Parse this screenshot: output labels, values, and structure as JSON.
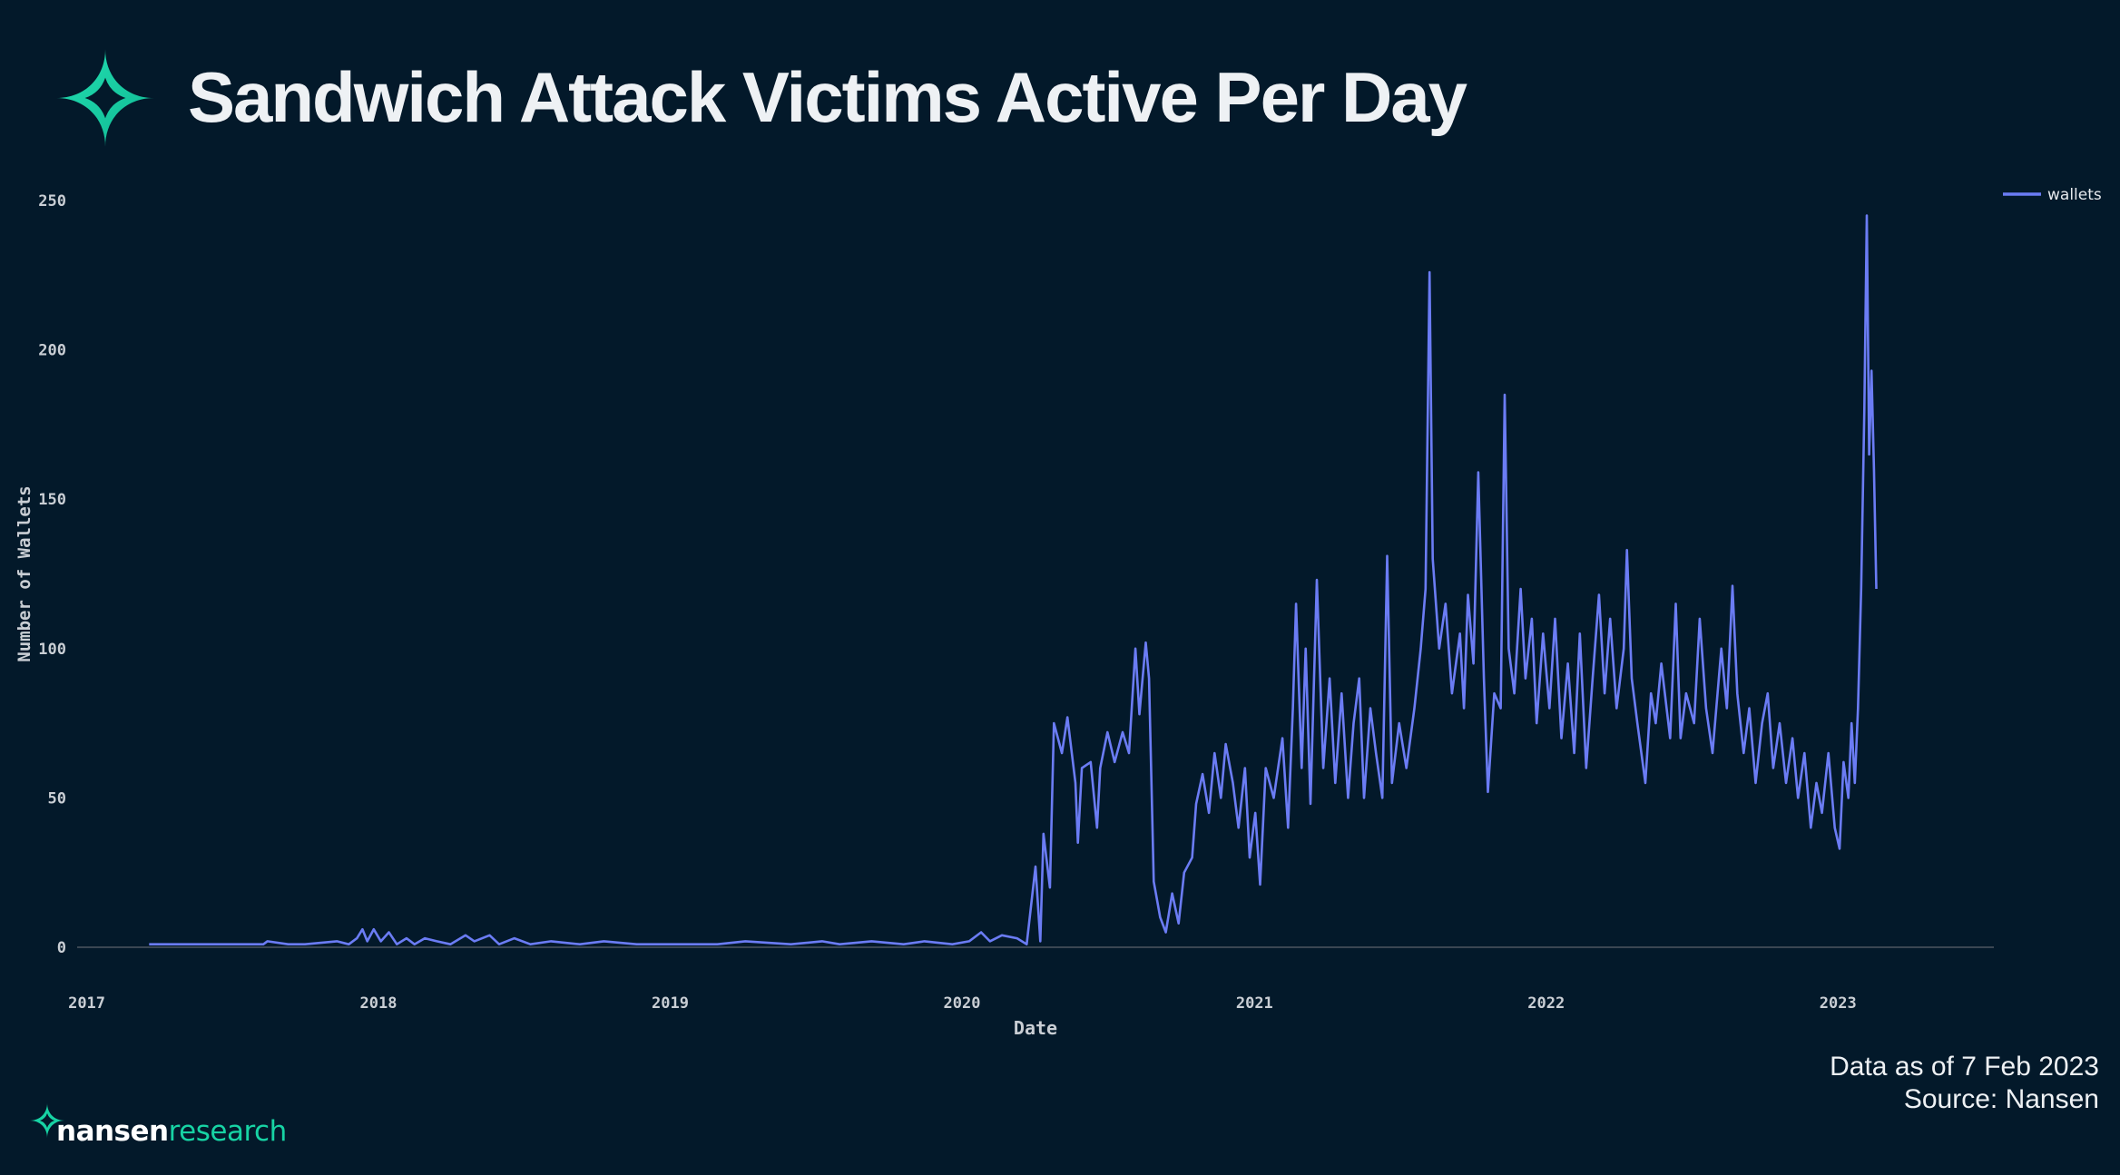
{
  "header": {
    "title": "Sandwich Attack Victims Active Per Day"
  },
  "footer": {
    "brand_primary": "nansen",
    "brand_secondary": "research",
    "data_note": "Data as of 7 Feb 2023",
    "source_note": "Source: Nansen"
  },
  "icons": {
    "logo": "nansen-star-icon",
    "brand": "nansen-star-icon"
  },
  "colors": {
    "background": "#03192a",
    "line": "#6b7cf4",
    "brand_teal": "#17d3a4",
    "axis_text": "#c9ced4"
  },
  "chart_data": {
    "type": "line",
    "xlabel": "Date",
    "ylabel": "Number of Wallets",
    "x_tick_labels": [
      "2017",
      "2018",
      "2019",
      "2020",
      "2021",
      "2022",
      "2023"
    ],
    "y_tick_labels": [
      "0",
      "50",
      "100",
      "150",
      "200",
      "250"
    ],
    "ylim": [
      0,
      250
    ],
    "xlim": [
      "2016-12-20",
      "2023-07-15"
    ],
    "legend_position": "top-right",
    "grid": false,
    "series": [
      {
        "name": "wallets",
        "color": "#6b7cf4",
        "points": [
          [
            "2017-03-20",
            1
          ],
          [
            "2017-06-01",
            1
          ],
          [
            "2017-08-10",
            1
          ],
          [
            "2017-08-15",
            2
          ],
          [
            "2017-09-10",
            1
          ],
          [
            "2017-10-01",
            1
          ],
          [
            "2017-11-10",
            2
          ],
          [
            "2017-11-25",
            1
          ],
          [
            "2017-12-05",
            3
          ],
          [
            "2017-12-12",
            6
          ],
          [
            "2017-12-18",
            2
          ],
          [
            "2017-12-26",
            6
          ],
          [
            "2018-01-04",
            2
          ],
          [
            "2018-01-14",
            5
          ],
          [
            "2018-01-24",
            1
          ],
          [
            "2018-02-05",
            3
          ],
          [
            "2018-02-15",
            1
          ],
          [
            "2018-02-28",
            3
          ],
          [
            "2018-03-15",
            2
          ],
          [
            "2018-04-01",
            1
          ],
          [
            "2018-04-20",
            4
          ],
          [
            "2018-05-01",
            2
          ],
          [
            "2018-05-20",
            4
          ],
          [
            "2018-06-01",
            1
          ],
          [
            "2018-06-20",
            3
          ],
          [
            "2018-07-10",
            1
          ],
          [
            "2018-08-05",
            2
          ],
          [
            "2018-09-10",
            1
          ],
          [
            "2018-10-10",
            2
          ],
          [
            "2018-11-20",
            1
          ],
          [
            "2019-01-01",
            1
          ],
          [
            "2019-03-01",
            1
          ],
          [
            "2019-04-05",
            2
          ],
          [
            "2019-06-01",
            1
          ],
          [
            "2019-07-10",
            2
          ],
          [
            "2019-08-01",
            1
          ],
          [
            "2019-09-10",
            2
          ],
          [
            "2019-10-20",
            1
          ],
          [
            "2019-11-15",
            2
          ],
          [
            "2019-12-20",
            1
          ],
          [
            "2020-01-10",
            2
          ],
          [
            "2020-01-25",
            5
          ],
          [
            "2020-02-05",
            2
          ],
          [
            "2020-02-20",
            4
          ],
          [
            "2020-03-10",
            3
          ],
          [
            "2020-03-22",
            1
          ],
          [
            "2020-04-02",
            27
          ],
          [
            "2020-04-08",
            2
          ],
          [
            "2020-04-12",
            38
          ],
          [
            "2020-04-20",
            20
          ],
          [
            "2020-04-25",
            75
          ],
          [
            "2020-05-05",
            65
          ],
          [
            "2020-05-12",
            77
          ],
          [
            "2020-05-22",
            55
          ],
          [
            "2020-05-25",
            35
          ],
          [
            "2020-05-30",
            60
          ],
          [
            "2020-06-10",
            62
          ],
          [
            "2020-06-18",
            40
          ],
          [
            "2020-06-22",
            60
          ],
          [
            "2020-07-01",
            72
          ],
          [
            "2020-07-10",
            62
          ],
          [
            "2020-07-20",
            72
          ],
          [
            "2020-07-28",
            65
          ],
          [
            "2020-08-05",
            100
          ],
          [
            "2020-08-10",
            78
          ],
          [
            "2020-08-18",
            102
          ],
          [
            "2020-08-22",
            90
          ],
          [
            "2020-08-28",
            22
          ],
          [
            "2020-09-05",
            10
          ],
          [
            "2020-09-12",
            5
          ],
          [
            "2020-09-20",
            18
          ],
          [
            "2020-09-28",
            8
          ],
          [
            "2020-10-05",
            25
          ],
          [
            "2020-10-15",
            30
          ],
          [
            "2020-10-20",
            48
          ],
          [
            "2020-10-28",
            58
          ],
          [
            "2020-11-05",
            45
          ],
          [
            "2020-11-12",
            65
          ],
          [
            "2020-11-20",
            50
          ],
          [
            "2020-11-26",
            68
          ],
          [
            "2020-12-05",
            55
          ],
          [
            "2020-12-12",
            40
          ],
          [
            "2020-12-20",
            60
          ],
          [
            "2020-12-26",
            30
          ],
          [
            "2021-01-02",
            45
          ],
          [
            "2021-01-08",
            21
          ],
          [
            "2021-01-15",
            60
          ],
          [
            "2021-01-25",
            50
          ],
          [
            "2021-02-05",
            70
          ],
          [
            "2021-02-12",
            40
          ],
          [
            "2021-02-18",
            80
          ],
          [
            "2021-02-22",
            115
          ],
          [
            "2021-03-01",
            60
          ],
          [
            "2021-03-06",
            100
          ],
          [
            "2021-03-12",
            48
          ],
          [
            "2021-03-20",
            123
          ],
          [
            "2021-03-28",
            60
          ],
          [
            "2021-04-05",
            90
          ],
          [
            "2021-04-12",
            55
          ],
          [
            "2021-04-20",
            85
          ],
          [
            "2021-04-28",
            50
          ],
          [
            "2021-05-05",
            75
          ],
          [
            "2021-05-12",
            90
          ],
          [
            "2021-05-18",
            50
          ],
          [
            "2021-05-26",
            80
          ],
          [
            "2021-06-02",
            65
          ],
          [
            "2021-06-10",
            50
          ],
          [
            "2021-06-16",
            131
          ],
          [
            "2021-06-22",
            55
          ],
          [
            "2021-07-01",
            75
          ],
          [
            "2021-07-10",
            60
          ],
          [
            "2021-07-20",
            80
          ],
          [
            "2021-07-28",
            100
          ],
          [
            "2021-08-03",
            120
          ],
          [
            "2021-08-08",
            226
          ],
          [
            "2021-08-12",
            130
          ],
          [
            "2021-08-20",
            100
          ],
          [
            "2021-08-28",
            115
          ],
          [
            "2021-09-05",
            85
          ],
          [
            "2021-09-15",
            105
          ],
          [
            "2021-09-20",
            80
          ],
          [
            "2021-09-25",
            118
          ],
          [
            "2021-10-02",
            95
          ],
          [
            "2021-10-08",
            159
          ],
          [
            "2021-10-15",
            90
          ],
          [
            "2021-10-20",
            52
          ],
          [
            "2021-10-28",
            85
          ],
          [
            "2021-11-05",
            80
          ],
          [
            "2021-11-10",
            185
          ],
          [
            "2021-11-15",
            100
          ],
          [
            "2021-11-22",
            85
          ],
          [
            "2021-11-30",
            120
          ],
          [
            "2021-12-06",
            90
          ],
          [
            "2021-12-14",
            110
          ],
          [
            "2021-12-20",
            75
          ],
          [
            "2021-12-28",
            105
          ],
          [
            "2022-01-05",
            80
          ],
          [
            "2022-01-12",
            110
          ],
          [
            "2022-01-20",
            70
          ],
          [
            "2022-01-28",
            95
          ],
          [
            "2022-02-05",
            65
          ],
          [
            "2022-02-12",
            105
          ],
          [
            "2022-02-20",
            60
          ],
          [
            "2022-02-28",
            90
          ],
          [
            "2022-03-08",
            118
          ],
          [
            "2022-03-15",
            85
          ],
          [
            "2022-03-22",
            110
          ],
          [
            "2022-03-30",
            80
          ],
          [
            "2022-04-08",
            100
          ],
          [
            "2022-04-12",
            133
          ],
          [
            "2022-04-18",
            90
          ],
          [
            "2022-04-25",
            75
          ],
          [
            "2022-05-05",
            55
          ],
          [
            "2022-05-12",
            85
          ],
          [
            "2022-05-18",
            75
          ],
          [
            "2022-05-25",
            95
          ],
          [
            "2022-06-05",
            70
          ],
          [
            "2022-06-12",
            115
          ],
          [
            "2022-06-18",
            70
          ],
          [
            "2022-06-25",
            85
          ],
          [
            "2022-07-05",
            75
          ],
          [
            "2022-07-12",
            110
          ],
          [
            "2022-07-20",
            80
          ],
          [
            "2022-07-28",
            65
          ],
          [
            "2022-08-08",
            100
          ],
          [
            "2022-08-15",
            80
          ],
          [
            "2022-08-22",
            121
          ],
          [
            "2022-08-28",
            85
          ],
          [
            "2022-09-05",
            65
          ],
          [
            "2022-09-12",
            80
          ],
          [
            "2022-09-20",
            55
          ],
          [
            "2022-09-28",
            75
          ],
          [
            "2022-10-05",
            85
          ],
          [
            "2022-10-12",
            60
          ],
          [
            "2022-10-20",
            75
          ],
          [
            "2022-10-28",
            55
          ],
          [
            "2022-11-05",
            70
          ],
          [
            "2022-11-12",
            50
          ],
          [
            "2022-11-20",
            65
          ],
          [
            "2022-11-28",
            40
          ],
          [
            "2022-12-05",
            55
          ],
          [
            "2022-12-12",
            45
          ],
          [
            "2022-12-20",
            65
          ],
          [
            "2022-12-28",
            40
          ],
          [
            "2023-01-03",
            33
          ],
          [
            "2023-01-08",
            62
          ],
          [
            "2023-01-14",
            50
          ],
          [
            "2023-01-18",
            75
          ],
          [
            "2023-01-22",
            55
          ],
          [
            "2023-01-26",
            80
          ],
          [
            "2023-01-30",
            120
          ],
          [
            "2023-02-03",
            180
          ],
          [
            "2023-02-06",
            245
          ],
          [
            "2023-02-09",
            165
          ],
          [
            "2023-02-12",
            193
          ],
          [
            "2023-02-15",
            160
          ],
          [
            "2023-02-18",
            120
          ]
        ]
      }
    ]
  }
}
